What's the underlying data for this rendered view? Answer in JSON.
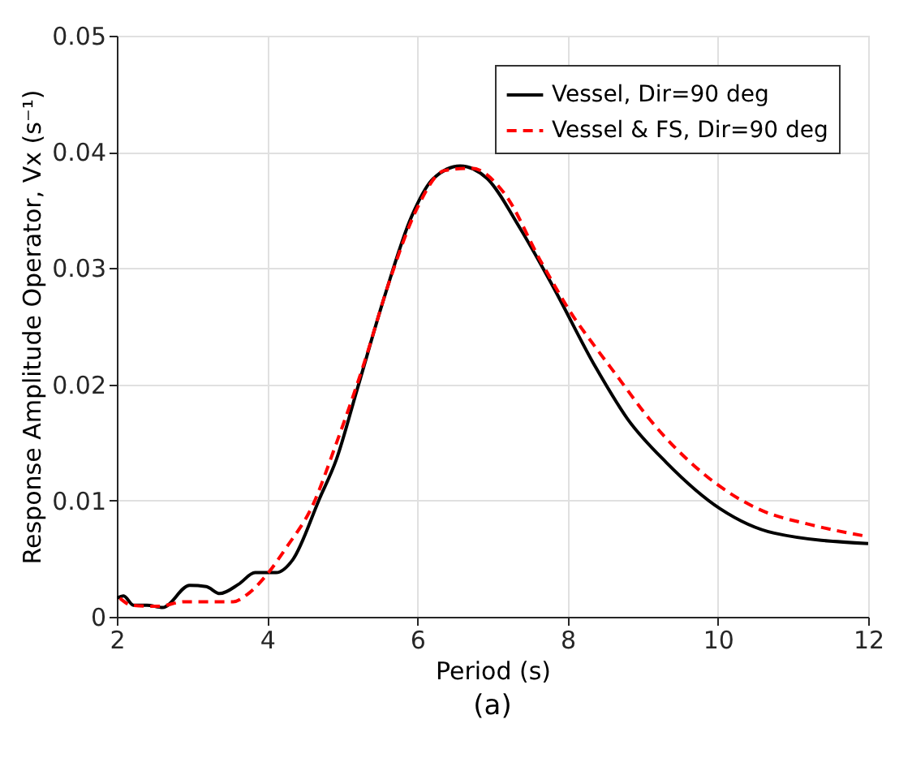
{
  "chart_data": {
    "type": "line",
    "xlabel": "Period (s)",
    "ylabel": "Response Amplitude Operator, Vx (s⁻¹)",
    "annotations": [
      "(a)"
    ],
    "xlim": [
      2,
      12
    ],
    "xticks": [
      2,
      4,
      6,
      8,
      10,
      12
    ],
    "ylim": [
      0,
      0.05
    ],
    "yticks": [
      0,
      0.01,
      0.02,
      0.03,
      0.04,
      0.05
    ],
    "grid": true,
    "legend": "top right",
    "marker": "none",
    "series": [
      {
        "name": "Vessel, Dir=90 deg",
        "color": "#000000",
        "line_style": "solid",
        "x": [
          2,
          2.09,
          2.22,
          2.4,
          2.61,
          2.97,
          3.19,
          3.37,
          3.62,
          3.84,
          4.12,
          4.34,
          4.7,
          4.92,
          5.2,
          5.56,
          5.92,
          6.21,
          6.57,
          6.93,
          7.36,
          7.79,
          8.37,
          8.8,
          9.31,
          10.03,
          10.75,
          12
        ],
        "values": [
          0.0016,
          0.0018,
          0.001,
          0.001,
          0.0008,
          0.0027,
          0.0026,
          0.002,
          0.0028,
          0.0038,
          0.0038,
          0.0049,
          0.0102,
          0.0135,
          0.0196,
          0.0275,
          0.0344,
          0.0377,
          0.0388,
          0.0377,
          0.0335,
          0.0286,
          0.0215,
          0.017,
          0.0133,
          0.0093,
          0.0072,
          0.0063
        ]
      },
      {
        "name": "Vessel & FS, Dir=90 deg",
        "color": "#ff0000",
        "line_style": "dashed",
        "x": [
          2.04,
          2.2,
          2.55,
          2.9,
          3.55,
          3.73,
          3.98,
          4.26,
          4.6,
          4.92,
          5.28,
          5.64,
          6,
          6.36,
          6.72,
          7.15,
          7.65,
          8.08,
          8.37,
          8.66,
          9.09,
          9.81,
          10.53,
          11.25,
          12
        ],
        "values": [
          0.0016,
          0.001,
          0.0009,
          0.0013,
          0.0013,
          0.0019,
          0.0035,
          0.006,
          0.0095,
          0.0149,
          0.0216,
          0.0291,
          0.0352,
          0.0384,
          0.0386,
          0.0365,
          0.0305,
          0.0258,
          0.0232,
          0.0207,
          0.017,
          0.0123,
          0.0093,
          0.0079,
          0.0069
        ]
      }
    ]
  }
}
